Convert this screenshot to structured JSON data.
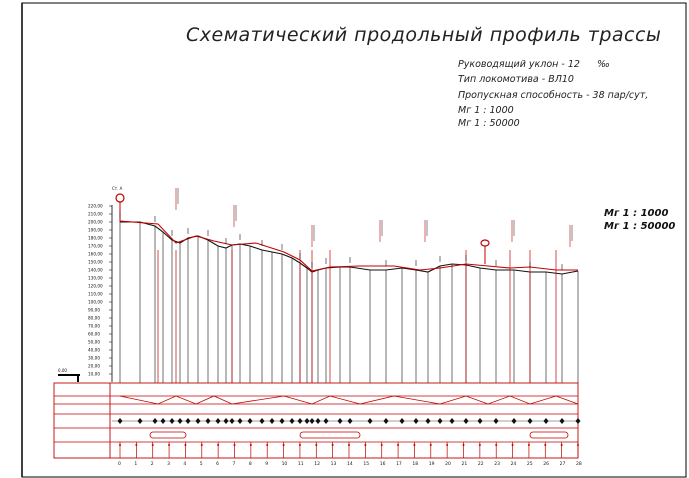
{
  "drawing": {
    "title": "Схематический продольный профиль трассы",
    "params": {
      "ruling_grade": "Руководящий уклон - 12",
      "ruling_grade_unit": "‰",
      "locomotive": "Тип локомотива - ВЛ10",
      "capacity": "Пропускная способность - 38 пар/сут,",
      "scale_h": "Мг 1 : 1000",
      "scale_v": "Мг 1 : 50000"
    },
    "scale_right": {
      "scale_h": "Мг 1 : 1000",
      "scale_v": "Мг 1 : 50000"
    },
    "elevation_ticks": [
      "220,00",
      "210,00",
      "200,00",
      "190,00",
      "180,00",
      "170,00",
      "160,00",
      "150,00",
      "140,00",
      "130,00",
      "120,00",
      "110,00",
      "100,00",
      "90,00",
      "80,00",
      "70,00",
      "60,00",
      "50,00",
      "40,00",
      "30,00",
      "20,00",
      "10,00"
    ],
    "datum_label": "0,00",
    "station_label": "Ст. А",
    "km_labels": [
      "0",
      "1",
      "2",
      "3",
      "4",
      "5",
      "6",
      "7",
      "8",
      "9",
      "10",
      "11",
      "12",
      "13",
      "14",
      "15",
      "16",
      "17",
      "18",
      "19",
      "20",
      "21",
      "22",
      "23",
      "24",
      "25",
      "26",
      "27",
      "28"
    ]
  },
  "colors": {
    "frame": "#000000",
    "profile_red": "#c00000",
    "ink": "#111111"
  }
}
